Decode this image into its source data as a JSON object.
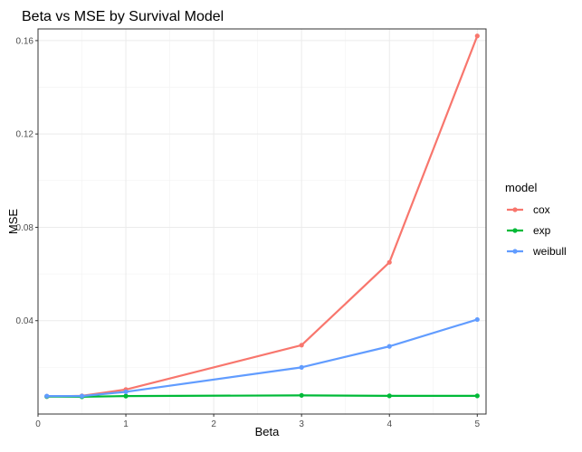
{
  "chart_data": {
    "type": "line",
    "title": "Beta vs MSE by Survival Model",
    "xlabel": "Beta",
    "ylabel": "MSE",
    "xlim": [
      0,
      5.1
    ],
    "ylim": [
      0.0,
      0.165
    ],
    "x_ticks": [
      0,
      1,
      2,
      3,
      4,
      5
    ],
    "x_tick_labels": [
      "0",
      "1",
      "2",
      "3",
      "4",
      "5"
    ],
    "y_ticks": [
      0.04,
      0.08,
      0.12,
      0.16
    ],
    "y_tick_labels": [
      "0.04",
      "0.08",
      "0.12",
      "0.16"
    ],
    "grid": true,
    "legend": {
      "title": "model",
      "position": "right"
    },
    "x": [
      0.1,
      0.5,
      1,
      3,
      4,
      5
    ],
    "series": [
      {
        "name": "cox",
        "color": "#F8766D",
        "values": [
          0.0075,
          0.0078,
          0.0105,
          0.0295,
          0.065,
          0.162
        ]
      },
      {
        "name": "exp",
        "color": "#00BA38",
        "values": [
          0.0075,
          0.0074,
          0.0077,
          0.008,
          0.0078,
          0.0078
        ]
      },
      {
        "name": "weibull",
        "color": "#619CFF",
        "values": [
          0.0077,
          0.0077,
          0.0095,
          0.02,
          0.029,
          0.0405
        ]
      }
    ]
  }
}
